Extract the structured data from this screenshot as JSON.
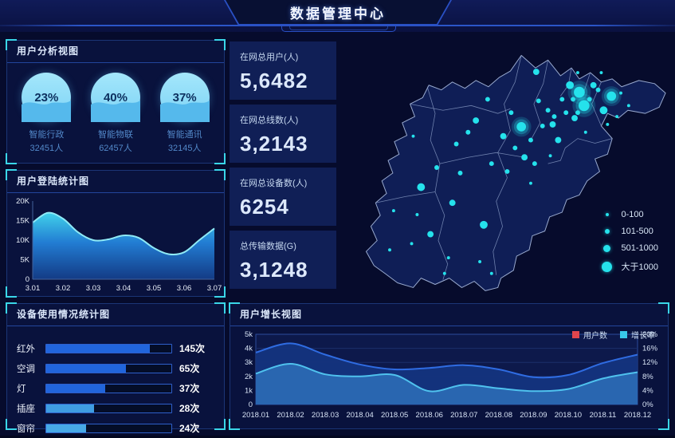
{
  "header": {
    "title": "数据管理中心"
  },
  "panels": {
    "user_analysis": {
      "title": "用户分析视图"
    },
    "login_stats": {
      "title": "用户登陆统计图"
    },
    "device_usage": {
      "title": "设备使用情况统计图"
    },
    "user_growth": {
      "title": "用户增长视图"
    }
  },
  "stats": {
    "cards": [
      {
        "label": "在网总用户(人)",
        "value": "5,6482"
      },
      {
        "label": "在网总线数(人)",
        "value": "3,2143"
      },
      {
        "label": "在网总设备数(人)",
        "value": "6254"
      },
      {
        "label": "总传输数据(G)",
        "value": "3,1248"
      }
    ]
  },
  "colors": {
    "accent_cyan": "#3ad6e8",
    "dot_cyan": "#25e2ec",
    "bar_blue": "#2165dc",
    "bar_light_blue": "#47a9e6",
    "legend_red": "#e0454d",
    "users_line": "#2f6ce2",
    "growth_line": "#4fc2ee",
    "gauge_wave": "#55b9ec"
  },
  "chart_data": [
    {
      "id": "user-gauges",
      "type": "pie",
      "title": "用户分析视图",
      "items": [
        {
          "pct": "23%",
          "name": "智能行政",
          "count": "32451人"
        },
        {
          "pct": "40%",
          "name": "智能物联",
          "count": "62457人"
        },
        {
          "pct": "37%",
          "name": "智能通讯",
          "count": "32145人"
        }
      ]
    },
    {
      "id": "login",
      "type": "area",
      "title": "用户登陆统计图",
      "x_ticks": [
        "3.01",
        "3.02",
        "3.03",
        "3.04",
        "3.05",
        "3.06",
        "3.07"
      ],
      "y_ticks": [
        "0",
        "5K",
        "10K",
        "15K",
        "20K"
      ],
      "ylim_k": [
        0,
        20
      ],
      "values_k": [
        14.5,
        17,
        15.5,
        12,
        10,
        10.2,
        11.2,
        10.6,
        8,
        6.4,
        6.9,
        10,
        13
      ]
    },
    {
      "id": "devices",
      "type": "bar",
      "title": "设备使用情况统计图",
      "categories": [
        "红外",
        "空调",
        "灯",
        "插座",
        "窗帘"
      ],
      "values": [
        145,
        65,
        37,
        28,
        24
      ],
      "value_labels": [
        "145次",
        "65次",
        "37次",
        "28次",
        "24次"
      ],
      "fill_pct": [
        83,
        64,
        47,
        38,
        32
      ],
      "bar_colors": [
        "#2165dc",
        "#2165dc",
        "#2165dc",
        "#3f9de2",
        "#47a9e6"
      ]
    },
    {
      "id": "growth",
      "type": "area",
      "title": "用户增长视图",
      "categories": [
        "2018.01",
        "2018.02",
        "2018.03",
        "2018.04",
        "2018.05",
        "2018.06",
        "2018.07",
        "2018.08",
        "2018.09",
        "2018.10",
        "2018.11",
        "2018.12"
      ],
      "left_ticks": [
        "0",
        "1k",
        "2k",
        "3k",
        "4k",
        "5k"
      ],
      "right_ticks": [
        "0%",
        "4%",
        "8%",
        "12%",
        "16%",
        "20%"
      ],
      "ylim_left": [
        0,
        5000
      ],
      "ylim_right_pct": [
        0,
        20
      ],
      "legend": [
        {
          "label": "用户数",
          "color": "#e0454d"
        },
        {
          "label": "增长率",
          "color": "#38c8ea"
        }
      ],
      "series": [
        {
          "name": "用户数",
          "axis": "left",
          "values": [
            3700,
            4350,
            3550,
            2850,
            2500,
            2600,
            2800,
            2500,
            1950,
            2100,
            2950,
            3550
          ]
        },
        {
          "name": "增长率",
          "axis": "right",
          "values_pct": [
            8.8,
            11.6,
            8.6,
            8.0,
            8.4,
            3.8,
            5.6,
            4.6,
            3.8,
            4.4,
            7.4,
            9.2
          ]
        }
      ]
    },
    {
      "id": "map-scatter",
      "type": "scatter",
      "title": "",
      "legend": [
        {
          "label": "0-100",
          "d": 4
        },
        {
          "label": "101-500",
          "d": 6
        },
        {
          "label": "501-1000",
          "d": 9
        },
        {
          "label": "大于1000",
          "d": 13
        }
      ],
      "points": [
        [
          302,
          69,
          7
        ],
        [
          308,
          86,
          7
        ],
        [
          343,
          74,
          6
        ],
        [
          228,
          113,
          6
        ],
        [
          290,
          60,
          5
        ],
        [
          333,
          92,
          5
        ],
        [
          100,
          190,
          5
        ],
        [
          180,
          238,
          5
        ],
        [
          140,
          210,
          4
        ],
        [
          247,
          43,
          4
        ],
        [
          320,
          60,
          4
        ],
        [
          296,
          102,
          4
        ],
        [
          268,
          110,
          4
        ],
        [
          170,
          105,
          4
        ],
        [
          205,
          125,
          4
        ],
        [
          232,
          152,
          4
        ],
        [
          275,
          130,
          4
        ],
        [
          112,
          250,
          4
        ],
        [
          185,
          78,
          3
        ],
        [
          215,
          95,
          3
        ],
        [
          250,
          80,
          3
        ],
        [
          262,
          92,
          3
        ],
        [
          280,
          78,
          3
        ],
        [
          294,
          78,
          3
        ],
        [
          315,
          78,
          3
        ],
        [
          326,
          66,
          3
        ],
        [
          300,
          95,
          3
        ],
        [
          285,
          95,
          3
        ],
        [
          270,
          100,
          3
        ],
        [
          255,
          112,
          3
        ],
        [
          240,
          130,
          3
        ],
        [
          220,
          140,
          3
        ],
        [
          160,
          120,
          3
        ],
        [
          145,
          135,
          3
        ],
        [
          120,
          165,
          3
        ],
        [
          190,
          160,
          3
        ],
        [
          210,
          170,
          3
        ],
        [
          245,
          160,
          3
        ],
        [
          150,
          172,
          3
        ],
        [
          95,
          225,
          2
        ],
        [
          135,
          280,
          2
        ],
        [
          175,
          285,
          2
        ],
        [
          88,
          262,
          2
        ],
        [
          60,
          270,
          2
        ],
        [
          330,
          44,
          2
        ],
        [
          355,
          70,
          2
        ],
        [
          365,
          86,
          2
        ],
        [
          300,
          44,
          2
        ],
        [
          90,
          125,
          2
        ],
        [
          65,
          220,
          2
        ],
        [
          190,
          300,
          2
        ],
        [
          130,
          300,
          2
        ],
        [
          240,
          185,
          2
        ],
        [
          265,
          150,
          2
        ],
        [
          310,
          120,
          2
        ],
        [
          350,
          100,
          2
        ],
        [
          338,
          110,
          2
        ]
      ]
    }
  ]
}
